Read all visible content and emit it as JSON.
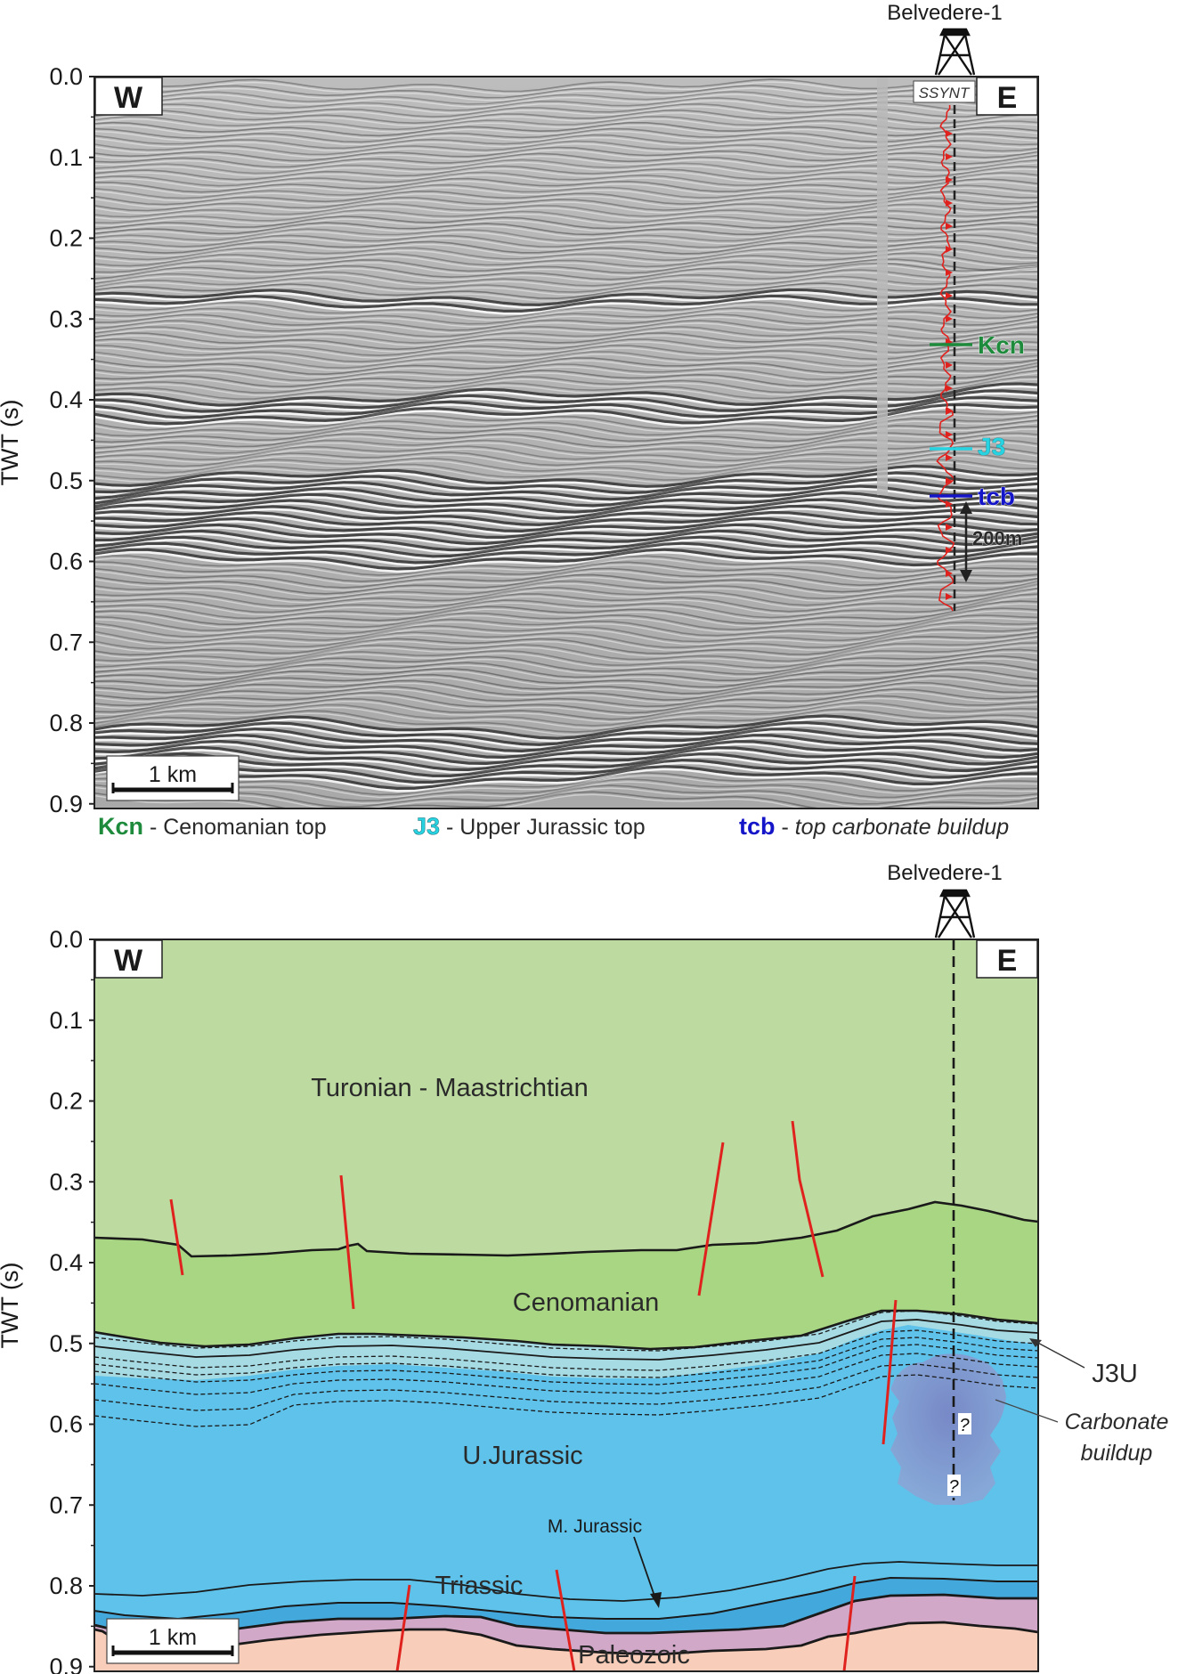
{
  "well": {
    "name": "Belvedere-1",
    "synthetic_label": "SSYNT"
  },
  "axis": {
    "ylabel": "TWT (s)",
    "ticks": [
      "0.0",
      "0.1",
      "0.2",
      "0.3",
      "0.4",
      "0.5",
      "0.6",
      "0.7",
      "0.8",
      "0.9"
    ]
  },
  "directions": {
    "west": "W",
    "east": "E"
  },
  "scale_bar": "1 km",
  "seismic": {
    "markers": [
      {
        "code": "Kcn",
        "color": "#1e8a3c"
      },
      {
        "code": "J3",
        "color": "#27d3e0"
      },
      {
        "code": "tcb",
        "color": "#1414c8"
      }
    ],
    "thickness_label": "200m"
  },
  "legend": [
    {
      "code": "Kcn",
      "separator": " - ",
      "desc": "Cenomanian top",
      "color": "#1e8a3c",
      "italic": false
    },
    {
      "code": "J3",
      "separator": " - ",
      "desc": "Upper Jurassic top",
      "color": "#27d3e0",
      "italic": false
    },
    {
      "code": "tcb",
      "separator": " - ",
      "desc": "top carbonate buildup",
      "color": "#1414c8",
      "italic": true
    }
  ],
  "units": {
    "turonian": "Turonian - Maastrichtian",
    "cenomanian": "Cenomanian",
    "u_jurassic": "U.Jurassic",
    "m_jurassic": "M. Jurassic",
    "triassic": "Triassic",
    "paleozoic": "Paleozoic",
    "j3u": "J3U",
    "carbonate_line1": "Carbonate",
    "carbonate_line2": "buildup",
    "question": "?"
  },
  "colors": {
    "turonian": "#bddba0",
    "cenomanian": "#a9d683",
    "j3u": "#a7dbe3",
    "u_jurassic": "#5ec2ea",
    "m_jurassic": "#43a9dd",
    "triassic": "#d2a8c8",
    "paleozoic": "#f8cdb9",
    "carbonate": "#7d8fca",
    "fault": "#e0221e"
  }
}
